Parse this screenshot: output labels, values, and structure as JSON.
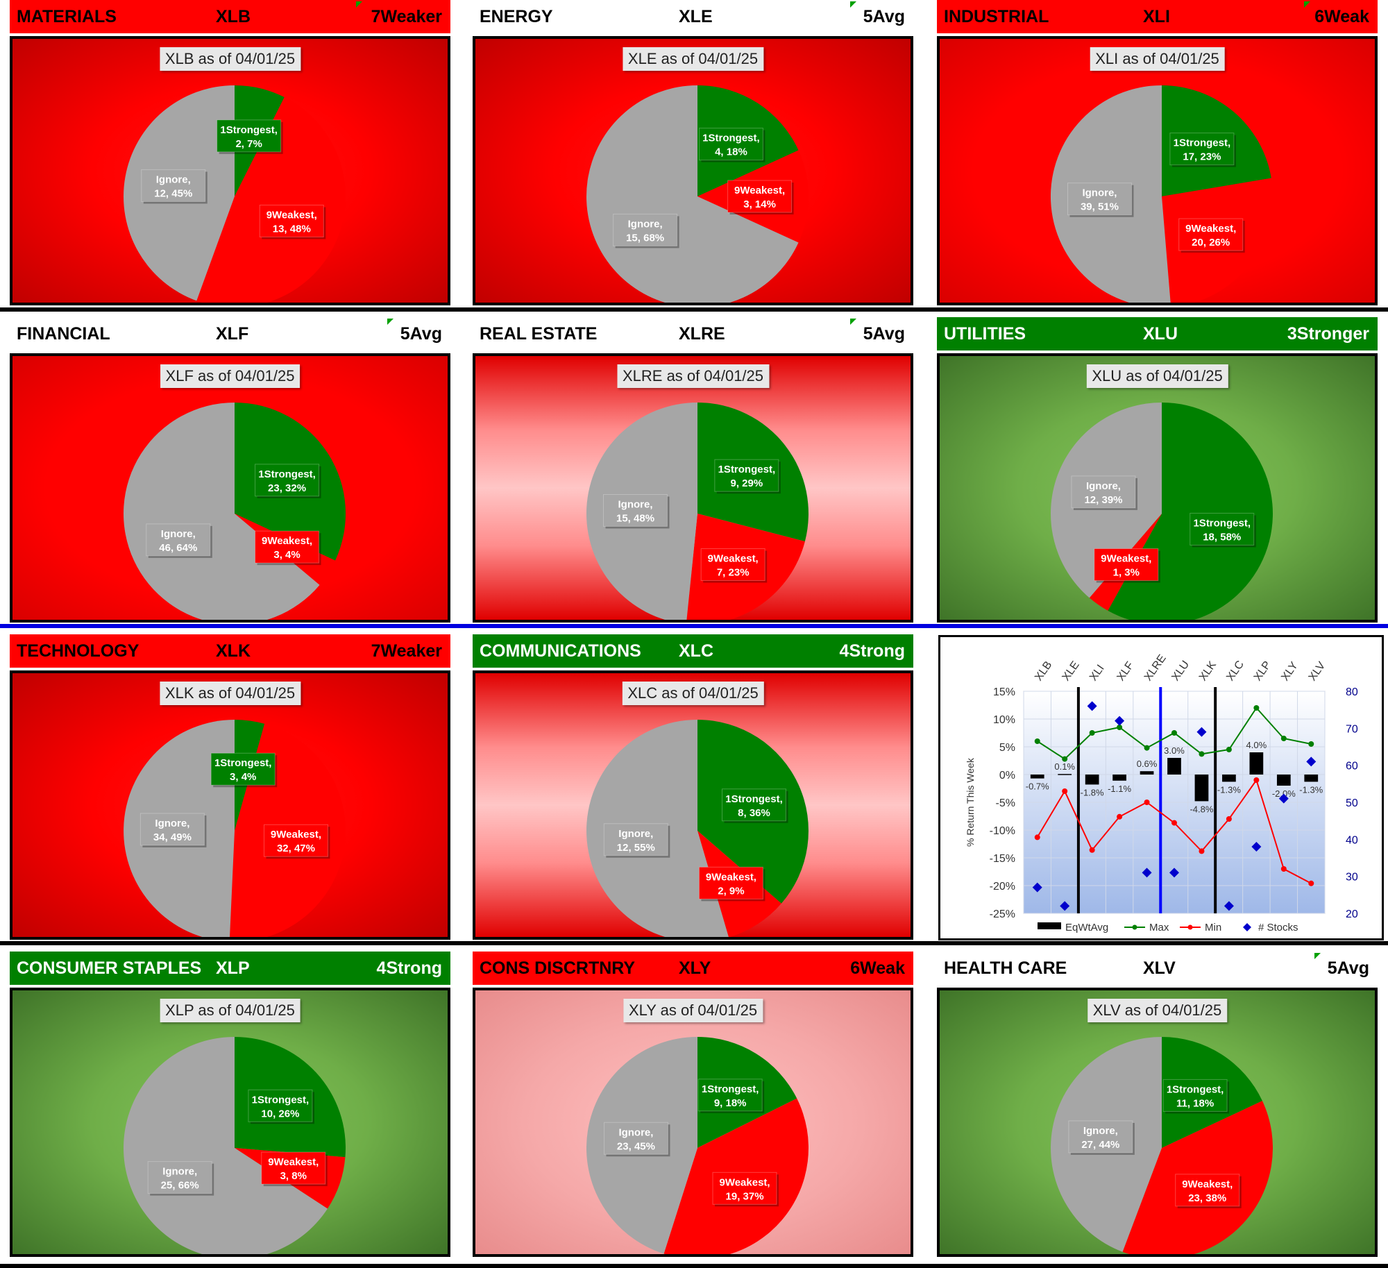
{
  "panels": [
    {
      "id": "xlb",
      "sector": "MATERIALS",
      "ticker": "XLB",
      "rating": "7Weaker",
      "header_style": "red",
      "bg": "darkred",
      "flag": true,
      "title": "XLB as of 04/01/25",
      "slices": [
        {
          "name": "1Strongest",
          "count": 2,
          "pct": "7%",
          "label": "1Strongest,\n2, 7%",
          "color": "#008000"
        },
        {
          "name": "9Weakest",
          "count": 13,
          "pct": "48%",
          "label": "9Weakest,\n13, 48%",
          "color": "#ff0000"
        },
        {
          "name": "Ignore",
          "count": 12,
          "pct": "45%",
          "label": "Ignore,\n12, 45%",
          "color": "#a6a6a6"
        }
      ]
    },
    {
      "id": "xle",
      "sector": "ENERGY",
      "ticker": "XLE",
      "rating": "5Avg",
      "header_style": "white",
      "bg": "darkred",
      "flag": true,
      "title": "XLE as of 04/01/25",
      "slices": [
        {
          "name": "1Strongest",
          "count": 4,
          "pct": "18%",
          "label": "1Strongest,\n4, 18%",
          "color": "#008000"
        },
        {
          "name": "9Weakest",
          "count": 3,
          "pct": "14%",
          "label": "9Weakest,\n3, 14%",
          "color": "#ff0000"
        },
        {
          "name": "Ignore",
          "count": 15,
          "pct": "68%",
          "label": "Ignore,\n15, 68%",
          "color": "#a6a6a6"
        }
      ]
    },
    {
      "id": "xli",
      "sector": "INDUSTRIAL",
      "ticker": "XLI",
      "rating": "6Weak",
      "header_style": "red",
      "bg": "red",
      "flag": true,
      "title": "XLI as of 04/01/25",
      "slices": [
        {
          "name": "1Strongest",
          "count": 17,
          "pct": "23%",
          "label": "1Strongest,\n17, 23%",
          "color": "#008000"
        },
        {
          "name": "9Weakest",
          "count": 20,
          "pct": "26%",
          "label": "9Weakest,\n20, 26%",
          "color": "#ff0000"
        },
        {
          "name": "Ignore",
          "count": 39,
          "pct": "51%",
          "label": "Ignore,\n39, 51%",
          "color": "#a6a6a6"
        }
      ]
    },
    {
      "id": "xlf",
      "sector": "FINANCIAL",
      "ticker": "XLF",
      "rating": "5Avg",
      "header_style": "white",
      "bg": "red",
      "flag": true,
      "title": "XLF as of 04/01/25",
      "slices": [
        {
          "name": "1Strongest",
          "count": 23,
          "pct": "32%",
          "label": "1Strongest,\n23, 32%",
          "color": "#008000"
        },
        {
          "name": "9Weakest",
          "count": 3,
          "pct": "4%",
          "label": "9Weakest,\n3, 4%",
          "color": "#ff0000"
        },
        {
          "name": "Ignore",
          "count": 46,
          "pct": "64%",
          "label": "Ignore,\n46, 64%",
          "color": "#a6a6a6"
        }
      ]
    },
    {
      "id": "xlre",
      "sector": "REAL ESTATE",
      "ticker": "XLRE",
      "rating": "5Avg",
      "header_style": "white",
      "bg": "pink",
      "flag": true,
      "title": "XLRE as of 04/01/25",
      "slices": [
        {
          "name": "1Strongest",
          "count": 9,
          "pct": "29%",
          "label": "1Strongest,\n9, 29%",
          "color": "#008000"
        },
        {
          "name": "9Weakest",
          "count": 7,
          "pct": "23%",
          "label": "9Weakest,\n7, 23%",
          "color": "#ff0000"
        },
        {
          "name": "Ignore",
          "count": 15,
          "pct": "48%",
          "label": "Ignore,\n15, 48%",
          "color": "#a6a6a6"
        }
      ]
    },
    {
      "id": "xlu",
      "sector": "UTILITIES",
      "ticker": "XLU",
      "rating": "3Stronger",
      "header_style": "green",
      "bg": "green",
      "flag": false,
      "title": "XLU as of 04/01/25",
      "slices": [
        {
          "name": "1Strongest",
          "count": 18,
          "pct": "58%",
          "label": "1Strongest,\n18, 58%",
          "color": "#008000"
        },
        {
          "name": "9Weakest",
          "count": 1,
          "pct": "3%",
          "label": "9Weakest,\n1, 3%",
          "color": "#ff0000"
        },
        {
          "name": "Ignore",
          "count": 12,
          "pct": "39%",
          "label": "Ignore,\n12, 39%",
          "color": "#a6a6a6"
        }
      ]
    },
    {
      "id": "xlk",
      "sector": "TECHNOLOGY",
      "ticker": "XLK",
      "rating": "7Weaker",
      "header_style": "red",
      "bg": "darkred",
      "flag": false,
      "title": "XLK as of 04/01/25",
      "slices": [
        {
          "name": "1Strongest",
          "count": 3,
          "pct": "4%",
          "label": "1Strongest,\n3, 4%",
          "color": "#008000"
        },
        {
          "name": "9Weakest",
          "count": 32,
          "pct": "47%",
          "label": "9Weakest,\n32, 47%",
          "color": "#ff0000"
        },
        {
          "name": "Ignore",
          "count": 34,
          "pct": "49%",
          "label": "Ignore,\n34, 49%",
          "color": "#a6a6a6"
        }
      ]
    },
    {
      "id": "xlc",
      "sector": "COMMUNICATIONS",
      "ticker": "XLC",
      "rating": "4Strong",
      "header_style": "green",
      "bg": "pink",
      "flag": false,
      "title": "XLC as of 04/01/25",
      "slices": [
        {
          "name": "1Strongest",
          "count": 8,
          "pct": "36%",
          "label": "1Strongest,\n8, 36%",
          "color": "#008000"
        },
        {
          "name": "9Weakest",
          "count": 2,
          "pct": "9%",
          "label": "9Weakest,\n2, 9%",
          "color": "#ff0000"
        },
        {
          "name": "Ignore",
          "count": 12,
          "pct": "55%",
          "label": "Ignore,\n12, 55%",
          "color": "#a6a6a6"
        }
      ]
    },
    {
      "id": "xlp",
      "sector": "CONSUMER STAPLES",
      "ticker": "XLP",
      "rating": "4Strong",
      "header_style": "green",
      "bg": "green",
      "flag": false,
      "title": "XLP as of 04/01/25",
      "slices": [
        {
          "name": "1Strongest",
          "count": 10,
          "pct": "26%",
          "label": "1Strongest,\n10, 26%",
          "color": "#008000"
        },
        {
          "name": "9Weakest",
          "count": 3,
          "pct": "8%",
          "label": "9Weakest,\n3, 8%",
          "color": "#ff0000"
        },
        {
          "name": "Ignore",
          "count": 25,
          "pct": "66%",
          "label": "Ignore,\n25, 66%",
          "color": "#a6a6a6"
        }
      ]
    },
    {
      "id": "xly",
      "sector": "CONS DISCRTNRY",
      "ticker": "XLY",
      "rating": "6Weak",
      "header_style": "red",
      "bg": "lightpink",
      "flag": false,
      "title": "XLY as of 04/01/25",
      "slices": [
        {
          "name": "1Strongest",
          "count": 9,
          "pct": "18%",
          "label": "1Strongest,\n9, 18%",
          "color": "#008000"
        },
        {
          "name": "9Weakest",
          "count": 19,
          "pct": "37%",
          "label": "9Weakest,\n19, 37%",
          "color": "#ff0000"
        },
        {
          "name": "Ignore",
          "count": 23,
          "pct": "45%",
          "label": "Ignore,\n23, 45%",
          "color": "#a6a6a6"
        }
      ]
    },
    {
      "id": "xlv",
      "sector": "HEALTH CARE",
      "ticker": "XLV",
      "rating": "5Avg",
      "header_style": "white",
      "bg": "green",
      "flag": true,
      "title": "XLV as of 04/01/25",
      "slices": [
        {
          "name": "1Strongest",
          "count": 11,
          "pct": "18%",
          "label": "1Strongest,\n11, 18%",
          "color": "#008000"
        },
        {
          "name": "9Weakest",
          "count": 23,
          "pct": "38%",
          "label": "9Weakest,\n23, 38%",
          "color": "#ff0000"
        },
        {
          "name": "Ignore",
          "count": 27,
          "pct": "44%",
          "label": "Ignore,\n27, 44%",
          "color": "#a6a6a6"
        }
      ]
    }
  ],
  "chart_data": [
    {
      "type": "pie",
      "title": "XLB as of 04/01/25",
      "categories": [
        "1Strongest",
        "9Weakest",
        "Ignore"
      ],
      "values": [
        2,
        13,
        12
      ],
      "percent": [
        7,
        48,
        45
      ]
    },
    {
      "type": "pie",
      "title": "XLE as of 04/01/25",
      "categories": [
        "1Strongest",
        "9Weakest",
        "Ignore"
      ],
      "values": [
        4,
        3,
        15
      ],
      "percent": [
        18,
        14,
        68
      ]
    },
    {
      "type": "pie",
      "title": "XLI as of 04/01/25",
      "categories": [
        "1Strongest",
        "9Weakest",
        "Ignore"
      ],
      "values": [
        17,
        20,
        39
      ],
      "percent": [
        23,
        26,
        51
      ]
    },
    {
      "type": "pie",
      "title": "XLF as of 04/01/25",
      "categories": [
        "1Strongest",
        "9Weakest",
        "Ignore"
      ],
      "values": [
        23,
        3,
        46
      ],
      "percent": [
        32,
        4,
        64
      ]
    },
    {
      "type": "pie",
      "title": "XLRE as of 04/01/25",
      "categories": [
        "1Strongest",
        "9Weakest",
        "Ignore"
      ],
      "values": [
        9,
        7,
        15
      ],
      "percent": [
        29,
        23,
        48
      ]
    },
    {
      "type": "pie",
      "title": "XLU as of 04/01/25",
      "categories": [
        "1Strongest",
        "9Weakest",
        "Ignore"
      ],
      "values": [
        18,
        1,
        12
      ],
      "percent": [
        58,
        3,
        39
      ]
    },
    {
      "type": "pie",
      "title": "XLK as of 04/01/25",
      "categories": [
        "1Strongest",
        "9Weakest",
        "Ignore"
      ],
      "values": [
        3,
        32,
        34
      ],
      "percent": [
        4,
        47,
        49
      ]
    },
    {
      "type": "pie",
      "title": "XLC as of 04/01/25",
      "categories": [
        "1Strongest",
        "9Weakest",
        "Ignore"
      ],
      "values": [
        8,
        2,
        12
      ],
      "percent": [
        36,
        9,
        55
      ]
    },
    {
      "type": "pie",
      "title": "XLP as of 04/01/25",
      "categories": [
        "1Strongest",
        "9Weakest",
        "Ignore"
      ],
      "values": [
        10,
        3,
        25
      ],
      "percent": [
        26,
        8,
        66
      ]
    },
    {
      "type": "pie",
      "title": "XLY as of 04/01/25",
      "categories": [
        "1Strongest",
        "9Weakest",
        "Ignore"
      ],
      "values": [
        9,
        19,
        23
      ],
      "percent": [
        18,
        37,
        45
      ]
    },
    {
      "type": "pie",
      "title": "XLV as of 04/01/25",
      "categories": [
        "1Strongest",
        "9Weakest",
        "Ignore"
      ],
      "values": [
        11,
        23,
        27
      ],
      "percent": [
        18,
        38,
        44
      ]
    },
    {
      "type": "bar",
      "title": "",
      "categories": [
        "XLB",
        "XLE",
        "XLI",
        "XLF",
        "XLRE",
        "XLU",
        "XLK",
        "XLC",
        "XLP",
        "XLY",
        "XLV"
      ],
      "ylabel": "% Return This Week",
      "y2label": "# Stocks",
      "ylim": [
        -25,
        15
      ],
      "y2lim": [
        20,
        80
      ],
      "yticks": [
        "15%",
        "10%",
        "5%",
        "0%",
        "-5%",
        "-10%",
        "-15%",
        "-20%",
        "-25%"
      ],
      "y2ticks": [
        "80",
        "70",
        "60",
        "50",
        "40",
        "30",
        "20"
      ],
      "series": [
        {
          "name": "EqWtAvg",
          "type": "bar",
          "color": "#000000",
          "values": [
            -0.7,
            0.1,
            -1.8,
            -1.1,
            0.6,
            3.0,
            -4.8,
            -1.3,
            4.0,
            -2.0,
            -1.3
          ],
          "labels": [
            "-0.7%",
            "0.1%",
            "-1.8%",
            "-1.1%",
            "0.6%",
            "3.0%",
            "-4.8%",
            "-1.3%",
            "4.0%",
            "-2.0%",
            "-1.3%"
          ]
        },
        {
          "name": "Max",
          "type": "line",
          "color": "#008000",
          "values": [
            6.0,
            2.8,
            7.5,
            8.5,
            4.8,
            7.5,
            3.7,
            4.5,
            12.0,
            6.5,
            5.5
          ]
        },
        {
          "name": "Min",
          "type": "line",
          "color": "#ff0000",
          "values": [
            -11.3,
            -3.0,
            -13.6,
            -7.6,
            -5.0,
            -8.7,
            -13.8,
            -8.0,
            -1.0,
            -17.0,
            -19.6
          ]
        },
        {
          "name": "# Stocks",
          "type": "scatter",
          "axis": "y2",
          "color": "#0000cc",
          "values": [
            27,
            22,
            76,
            72,
            31,
            31,
            69,
            22,
            38,
            51,
            61
          ]
        }
      ],
      "separators": [
        {
          "after": "XLE",
          "color": "#000000"
        },
        {
          "after": "XLRE",
          "color": "#0000ff"
        },
        {
          "after": "XLK",
          "color": "#000000"
        }
      ]
    }
  ],
  "legend": {
    "items": [
      "EqWtAvg",
      "Max",
      "Min",
      "# Stocks"
    ]
  }
}
